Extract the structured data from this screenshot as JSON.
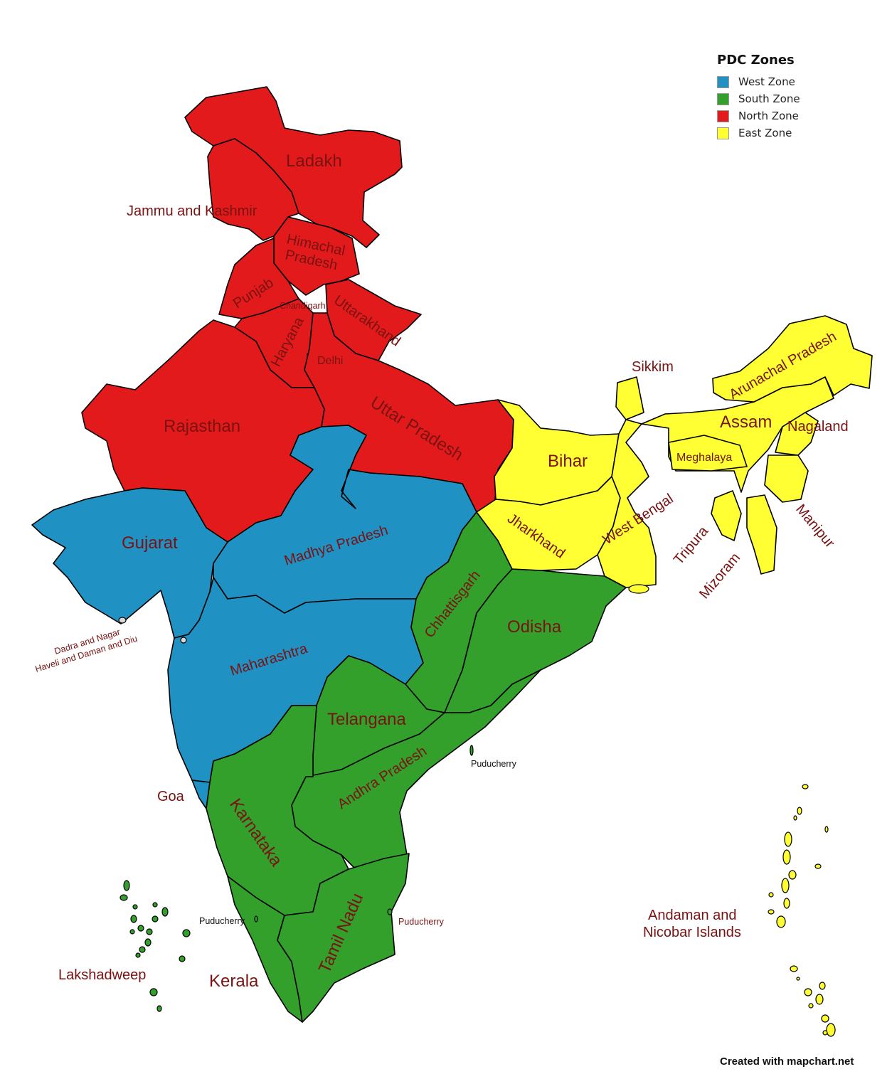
{
  "legend": {
    "title": "PDC Zones",
    "items": [
      {
        "label": "West Zone",
        "color": "#1f91c2"
      },
      {
        "label": "South Zone",
        "color": "#33a02c"
      },
      {
        "label": "North Zone",
        "color": "#e31a1c"
      },
      {
        "label": "East Zone",
        "color": "#ffff33"
      }
    ]
  },
  "labels": {
    "ladakh": "Ladakh",
    "jk": "Jammu and Kashmir",
    "hp1": "Himachal",
    "hp2": "Pradesh",
    "punjab": "Punjab",
    "chandigarh": "Chandigarh",
    "uttarakhand": "Uttarakhand",
    "haryana": "Haryana",
    "delhi": "Delhi",
    "rajasthan": "Rajasthan",
    "up": "Uttar Pradesh",
    "gujarat": "Gujarat",
    "mp": "Madhya Pradesh",
    "dnh1": "Dadra and Nagar",
    "dnh2": "Haveli and Daman and Diu",
    "maharashtra": "Maharashtra",
    "goa": "Goa",
    "chhattisgarh": "Chhattisgarh",
    "odisha": "Odisha",
    "telangana": "Telangana",
    "ap": "Andhra Pradesh",
    "karnataka": "Karnataka",
    "kerala": "Kerala",
    "tn": "Tamil Nadu",
    "lakshadweep": "Lakshadweep",
    "pud1": "Puducherry",
    "pud2": "Puducherry",
    "pud3": "Puducherry",
    "bihar": "Bihar",
    "jharkhand": "Jharkhand",
    "wb": "West Bengal",
    "sikkim": "Sikkim",
    "arunachal": "Arunachal Pradesh",
    "assam": "Assam",
    "meghalaya": "Meghalaya",
    "nagaland": "Nagaland",
    "manipur": "Manipur",
    "tripura": "Tripura",
    "mizoram": "Mizoram",
    "an1": "Andaman and",
    "an2": "Nicobar Islands"
  },
  "credit": "Created with mapchart.net"
}
